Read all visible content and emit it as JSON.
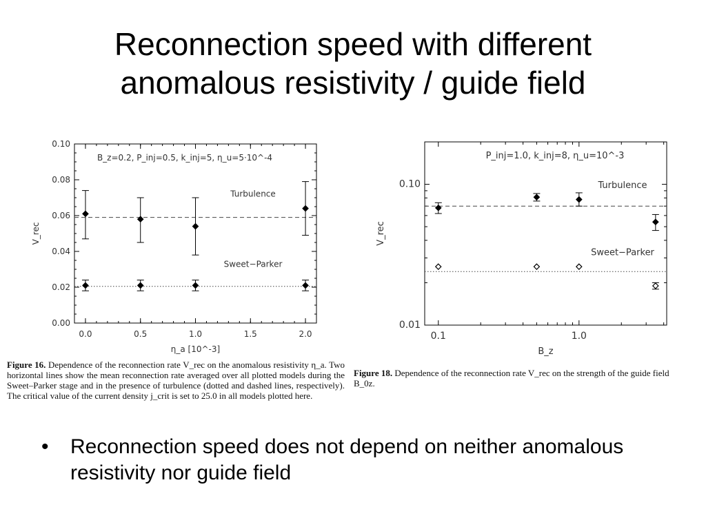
{
  "slide": {
    "title_line1": "Reconnection speed with different",
    "title_line2": "anomalous resistivity / guide field",
    "bullet_symbol": "•",
    "bullet_text": "Reconnection speed does not depend on neither anomalous resistivity nor guide field"
  },
  "captions": {
    "fig16_label": "Figure 16.",
    "fig16_text": "Dependence of the reconnection rate V_rec on the anomalous resistivity η_a. Two horizontal lines show the mean reconnection rate averaged over all plotted models during the Sweet–Parker stage and in the presence of turbulence (dotted and dashed lines, respectively). The critical value of the current density j_crit is set to 25.0 in all models plotted here.",
    "fig18_label": "Figure 18.",
    "fig18_text": "Dependence of the reconnection rate V_rec on the strength of the guide field B_0z."
  },
  "chart_data": [
    {
      "type": "scatter",
      "params": "B_z=0.2, P_inj=0.5, k_inj=5, η_u=5·10^-4",
      "xlabel": "η_a [10^-3]",
      "ylabel": "V_rec",
      "xlim": [
        -0.1,
        2.1
      ],
      "ylim": [
        0.0,
        0.1
      ],
      "xticks": [
        "0.0",
        "0.5",
        "1.0",
        "1.5",
        "2.0"
      ],
      "xtick_values": [
        0.0,
        0.5,
        1.0,
        1.5,
        2.0
      ],
      "yticks": [
        "0.00",
        "0.02",
        "0.04",
        "0.06",
        "0.08",
        "0.10"
      ],
      "ytick_values": [
        0.0,
        0.02,
        0.04,
        0.06,
        0.08,
        0.1
      ],
      "y_scale": "linear",
      "series": [
        {
          "name": "Turbulence",
          "marker": "filled-diamond",
          "x": [
            0.0,
            0.5,
            1.0,
            2.0
          ],
          "y": [
            0.061,
            0.058,
            0.054,
            0.064
          ],
          "err_low": [
            0.047,
            0.045,
            0.038,
            0.049
          ],
          "err_high": [
            0.074,
            0.07,
            0.07,
            0.079
          ],
          "mean": 0.059,
          "mean_line": "dashed"
        },
        {
          "name": "Sweet−Parker",
          "marker": "filled-diamond",
          "x": [
            0.0,
            0.5,
            1.0,
            2.0
          ],
          "y": [
            0.021,
            0.021,
            0.021,
            0.021
          ],
          "err_low": [
            0.018,
            0.018,
            0.018,
            0.018
          ],
          "err_high": [
            0.024,
            0.024,
            0.024,
            0.024
          ],
          "mean": 0.0205,
          "mean_line": "dotted"
        }
      ]
    },
    {
      "type": "scatter",
      "params": "P_inj=1.0, k_inj=8, η_u=10^-3",
      "xlabel": "B_z",
      "ylabel": "V_rec",
      "xlim": [
        0.08,
        4.2
      ],
      "ylim": [
        0.01,
        0.2
      ],
      "xticks": [
        "0.1",
        "1.0"
      ],
      "xtick_values": [
        0.1,
        1.0
      ],
      "yticks": [
        "0.01",
        "0.10"
      ],
      "ytick_values": [
        0.01,
        0.1
      ],
      "y_scale": "log",
      "x_scale": "log",
      "series": [
        {
          "name": "Turbulence",
          "marker": "filled-diamond",
          "x": [
            0.1,
            0.5,
            1.0,
            3.5
          ],
          "y": [
            0.068,
            0.081,
            0.078,
            0.054
          ],
          "err_low": [
            0.062,
            0.076,
            0.07,
            0.047
          ],
          "err_high": [
            0.074,
            0.086,
            0.087,
            0.061
          ],
          "mean": 0.07,
          "mean_line": "dashed"
        },
        {
          "name": "Sweet−Parker",
          "marker": "open-diamond",
          "x": [
            0.1,
            0.5,
            1.0,
            3.5
          ],
          "y": [
            0.026,
            0.026,
            0.026,
            0.019
          ],
          "err_low": [
            0.026,
            0.026,
            0.026,
            0.018
          ],
          "err_high": [
            0.026,
            0.026,
            0.026,
            0.02
          ],
          "mean": 0.024,
          "mean_line": "dotted"
        }
      ]
    }
  ]
}
